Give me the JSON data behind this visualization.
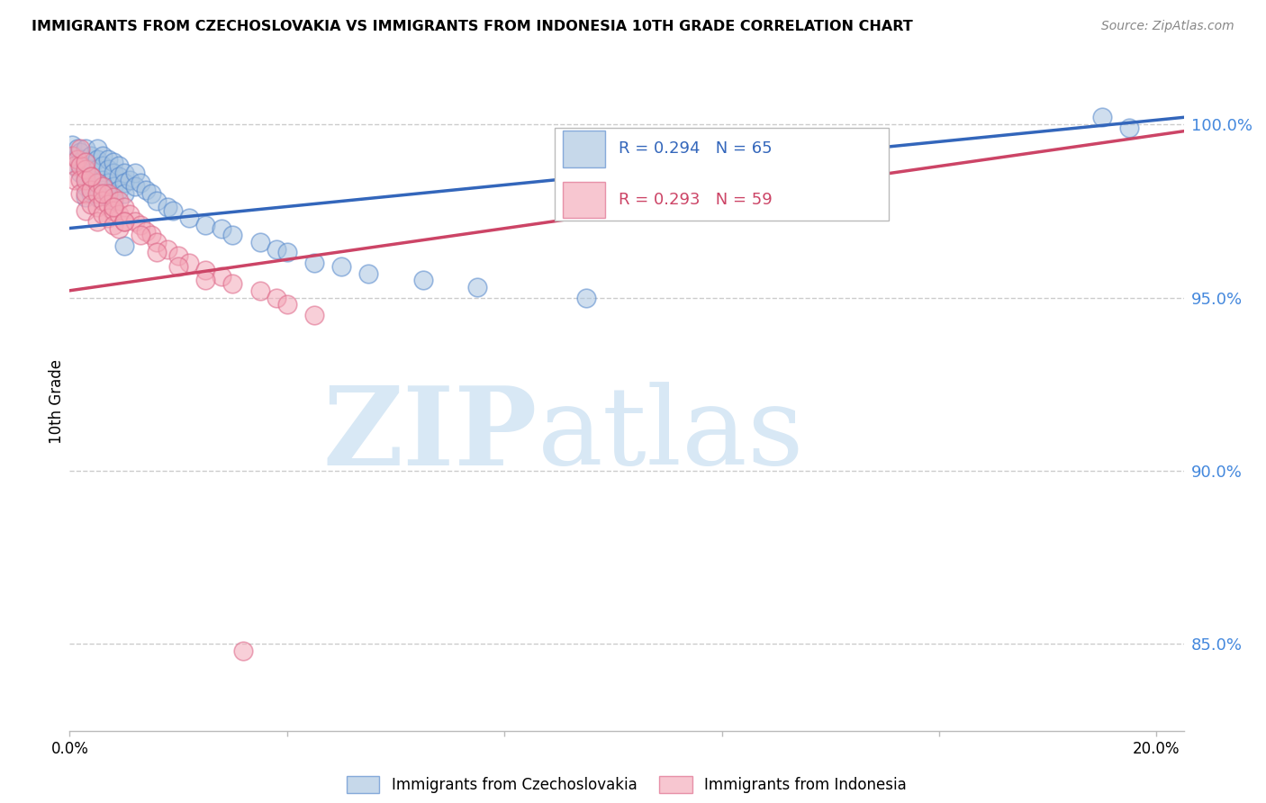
{
  "title": "IMMIGRANTS FROM CZECHOSLOVAKIA VS IMMIGRANTS FROM INDONESIA 10TH GRADE CORRELATION CHART",
  "source": "Source: ZipAtlas.com",
  "ylabel": "10th Grade",
  "R_blue": 0.294,
  "N_blue": 65,
  "R_pink": 0.293,
  "N_pink": 59,
  "blue_color": "#A8C4E0",
  "pink_color": "#F4A8B8",
  "blue_line_color": "#3366BB",
  "pink_line_color": "#CC4466",
  "blue_edge_color": "#5588CC",
  "pink_edge_color": "#DD6688",
  "watermark_zip": "ZIP",
  "watermark_atlas": "atlas",
  "watermark_color": "#D8E8F5",
  "legend_label_blue": "Immigrants from Czechoslovakia",
  "legend_label_pink": "Immigrants from Indonesia",
  "xmin": 0.0,
  "xmax": 0.205,
  "ymin": 0.825,
  "ymax": 1.015,
  "yticks": [
    0.85,
    0.9,
    0.95,
    1.0
  ],
  "ytick_labels": [
    "85.0%",
    "90.0%",
    "95.0%",
    "100.0%"
  ],
  "blue_scatter_x": [
    0.0005,
    0.001,
    0.001,
    0.0015,
    0.002,
    0.002,
    0.002,
    0.0025,
    0.003,
    0.003,
    0.003,
    0.003,
    0.003,
    0.004,
    0.004,
    0.004,
    0.004,
    0.005,
    0.005,
    0.005,
    0.005,
    0.005,
    0.006,
    0.006,
    0.006,
    0.006,
    0.007,
    0.007,
    0.007,
    0.007,
    0.008,
    0.008,
    0.008,
    0.008,
    0.009,
    0.009,
    0.009,
    0.01,
    0.01,
    0.01,
    0.011,
    0.012,
    0.012,
    0.013,
    0.014,
    0.015,
    0.016,
    0.018,
    0.019,
    0.022,
    0.025,
    0.028,
    0.03,
    0.035,
    0.038,
    0.04,
    0.045,
    0.05,
    0.055,
    0.065,
    0.075,
    0.095,
    0.19,
    0.195,
    0.01
  ],
  "blue_scatter_y": [
    0.994,
    0.991,
    0.988,
    0.993,
    0.992,
    0.989,
    0.986,
    0.99,
    0.993,
    0.989,
    0.985,
    0.982,
    0.979,
    0.991,
    0.987,
    0.984,
    0.98,
    0.993,
    0.99,
    0.987,
    0.983,
    0.979,
    0.991,
    0.988,
    0.984,
    0.981,
    0.99,
    0.987,
    0.983,
    0.98,
    0.989,
    0.986,
    0.982,
    0.978,
    0.988,
    0.985,
    0.981,
    0.986,
    0.983,
    0.98,
    0.984,
    0.986,
    0.982,
    0.983,
    0.981,
    0.98,
    0.978,
    0.976,
    0.975,
    0.973,
    0.971,
    0.97,
    0.968,
    0.966,
    0.964,
    0.963,
    0.96,
    0.959,
    0.957,
    0.955,
    0.953,
    0.95,
    1.002,
    0.999,
    0.965
  ],
  "pink_scatter_x": [
    0.0005,
    0.001,
    0.001,
    0.0015,
    0.002,
    0.002,
    0.002,
    0.003,
    0.003,
    0.003,
    0.003,
    0.004,
    0.004,
    0.004,
    0.005,
    0.005,
    0.005,
    0.005,
    0.006,
    0.006,
    0.006,
    0.007,
    0.007,
    0.007,
    0.008,
    0.008,
    0.008,
    0.009,
    0.009,
    0.009,
    0.01,
    0.01,
    0.011,
    0.012,
    0.013,
    0.014,
    0.015,
    0.016,
    0.018,
    0.02,
    0.022,
    0.025,
    0.028,
    0.03,
    0.035,
    0.038,
    0.04,
    0.045,
    0.002,
    0.003,
    0.004,
    0.006,
    0.008,
    0.01,
    0.013,
    0.016,
    0.02,
    0.025,
    0.032
  ],
  "pink_scatter_y": [
    0.991,
    0.988,
    0.984,
    0.99,
    0.988,
    0.984,
    0.98,
    0.987,
    0.984,
    0.98,
    0.975,
    0.985,
    0.981,
    0.977,
    0.983,
    0.98,
    0.976,
    0.972,
    0.982,
    0.978,
    0.974,
    0.98,
    0.977,
    0.973,
    0.979,
    0.975,
    0.971,
    0.978,
    0.974,
    0.97,
    0.976,
    0.972,
    0.974,
    0.972,
    0.971,
    0.969,
    0.968,
    0.966,
    0.964,
    0.962,
    0.96,
    0.958,
    0.956,
    0.954,
    0.952,
    0.95,
    0.948,
    0.945,
    0.993,
    0.989,
    0.985,
    0.98,
    0.976,
    0.972,
    0.968,
    0.963,
    0.959,
    0.955,
    0.848
  ],
  "blue_trend_x0": 0.0,
  "blue_trend_y0": 0.97,
  "blue_trend_x1": 0.205,
  "blue_trend_y1": 1.002,
  "pink_trend_x0": 0.0,
  "pink_trend_y0": 0.952,
  "pink_trend_x1": 0.205,
  "pink_trend_y1": 0.998
}
